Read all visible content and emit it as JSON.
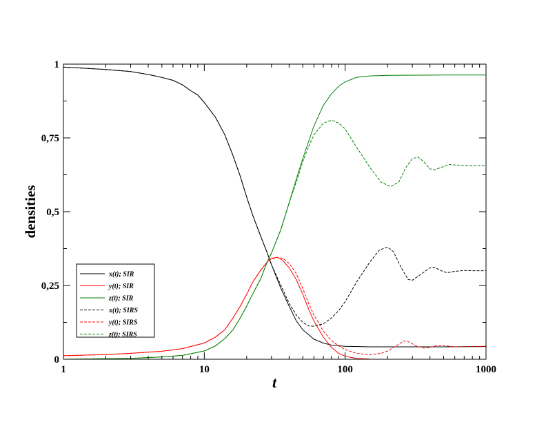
{
  "chart_data": {
    "type": "line",
    "title": "",
    "xlabel": "t",
    "ylabel": "densities",
    "xscale": "log",
    "xlim": [
      1,
      1000
    ],
    "ylim": [
      0,
      1
    ],
    "x_ticks": [
      "1",
      "10",
      "100",
      "1000"
    ],
    "y_ticks": [
      "0",
      "0,25",
      "0,5",
      "0,75",
      "1"
    ],
    "grid": false,
    "legend_position": "bottom-left",
    "series": [
      {
        "name": "x(t); SIR",
        "color": "#000000",
        "dash": "solid",
        "points": [
          [
            1,
            0.99
          ],
          [
            2,
            0.982
          ],
          [
            3,
            0.975
          ],
          [
            4,
            0.965
          ],
          [
            5,
            0.955
          ],
          [
            6,
            0.945
          ],
          [
            7,
            0.93
          ],
          [
            8,
            0.91
          ],
          [
            9,
            0.895
          ],
          [
            10,
            0.87
          ],
          [
            12,
            0.82
          ],
          [
            14,
            0.76
          ],
          [
            16,
            0.69
          ],
          [
            18,
            0.62
          ],
          [
            20,
            0.55
          ],
          [
            22,
            0.49
          ],
          [
            25,
            0.42
          ],
          [
            28,
            0.36
          ],
          [
            30,
            0.32
          ],
          [
            35,
            0.24
          ],
          [
            40,
            0.18
          ],
          [
            45,
            0.13
          ],
          [
            50,
            0.1
          ],
          [
            60,
            0.068
          ],
          [
            70,
            0.055
          ],
          [
            80,
            0.048
          ],
          [
            100,
            0.044
          ],
          [
            150,
            0.042
          ],
          [
            200,
            0.042
          ],
          [
            500,
            0.042
          ],
          [
            1000,
            0.043
          ]
        ]
      },
      {
        "name": "y(t); SIR",
        "color": "#ff0000",
        "dash": "solid",
        "points": [
          [
            1,
            0.012
          ],
          [
            2,
            0.016
          ],
          [
            3,
            0.02
          ],
          [
            5,
            0.027
          ],
          [
            7,
            0.036
          ],
          [
            10,
            0.055
          ],
          [
            12,
            0.075
          ],
          [
            14,
            0.1
          ],
          [
            16,
            0.14
          ],
          [
            18,
            0.18
          ],
          [
            20,
            0.22
          ],
          [
            22,
            0.26
          ],
          [
            25,
            0.3
          ],
          [
            28,
            0.33
          ],
          [
            30,
            0.342
          ],
          [
            33,
            0.345
          ],
          [
            36,
            0.335
          ],
          [
            40,
            0.31
          ],
          [
            45,
            0.27
          ],
          [
            50,
            0.22
          ],
          [
            55,
            0.17
          ],
          [
            60,
            0.13
          ],
          [
            70,
            0.075
          ],
          [
            80,
            0.04
          ],
          [
            90,
            0.02
          ],
          [
            100,
            0.01
          ],
          [
            120,
            0.003
          ],
          [
            150,
            0.001
          ]
        ]
      },
      {
        "name": "z(t); SIR",
        "color": "#008000",
        "dash": "solid",
        "points": [
          [
            1,
            0
          ],
          [
            3,
            0.003
          ],
          [
            5,
            0.008
          ],
          [
            7,
            0.013
          ],
          [
            10,
            0.028
          ],
          [
            12,
            0.045
          ],
          [
            14,
            0.07
          ],
          [
            16,
            0.1
          ],
          [
            18,
            0.14
          ],
          [
            20,
            0.18
          ],
          [
            22,
            0.22
          ],
          [
            25,
            0.27
          ],
          [
            28,
            0.33
          ],
          [
            30,
            0.36
          ],
          [
            35,
            0.44
          ],
          [
            40,
            0.53
          ],
          [
            45,
            0.61
          ],
          [
            50,
            0.68
          ],
          [
            60,
            0.79
          ],
          [
            70,
            0.86
          ],
          [
            80,
            0.9
          ],
          [
            90,
            0.925
          ],
          [
            100,
            0.94
          ],
          [
            120,
            0.955
          ],
          [
            150,
            0.96
          ],
          [
            200,
            0.962
          ],
          [
            500,
            0.963
          ],
          [
            1000,
            0.963
          ]
        ]
      },
      {
        "name": "x(t); SIRS",
        "color": "#000000",
        "dash": "dashed",
        "points": [
          [
            1,
            0.99
          ],
          [
            2,
            0.982
          ],
          [
            3,
            0.975
          ],
          [
            4,
            0.965
          ],
          [
            5,
            0.955
          ],
          [
            6,
            0.945
          ],
          [
            7,
            0.93
          ],
          [
            8,
            0.91
          ],
          [
            9,
            0.895
          ],
          [
            10,
            0.87
          ],
          [
            12,
            0.82
          ],
          [
            14,
            0.76
          ],
          [
            16,
            0.69
          ],
          [
            18,
            0.62
          ],
          [
            20,
            0.55
          ],
          [
            22,
            0.49
          ],
          [
            25,
            0.42
          ],
          [
            28,
            0.36
          ],
          [
            30,
            0.32
          ],
          [
            35,
            0.25
          ],
          [
            40,
            0.19
          ],
          [
            45,
            0.15
          ],
          [
            50,
            0.125
          ],
          [
            55,
            0.113
          ],
          [
            60,
            0.112
          ],
          [
            70,
            0.12
          ],
          [
            80,
            0.14
          ],
          [
            90,
            0.165
          ],
          [
            100,
            0.195
          ],
          [
            120,
            0.26
          ],
          [
            150,
            0.33
          ],
          [
            175,
            0.37
          ],
          [
            200,
            0.38
          ],
          [
            220,
            0.365
          ],
          [
            250,
            0.31
          ],
          [
            280,
            0.27
          ],
          [
            300,
            0.268
          ],
          [
            350,
            0.29
          ],
          [
            400,
            0.31
          ],
          [
            430,
            0.312
          ],
          [
            480,
            0.3
          ],
          [
            530,
            0.293
          ],
          [
            600,
            0.298
          ],
          [
            700,
            0.301
          ],
          [
            800,
            0.3
          ],
          [
            1000,
            0.3
          ]
        ]
      },
      {
        "name": "y(t); SIRS",
        "color": "#ff0000",
        "dash": "dashed",
        "points": [
          [
            1,
            0.012
          ],
          [
            2,
            0.016
          ],
          [
            3,
            0.02
          ],
          [
            5,
            0.027
          ],
          [
            7,
            0.036
          ],
          [
            10,
            0.055
          ],
          [
            12,
            0.075
          ],
          [
            14,
            0.1
          ],
          [
            16,
            0.14
          ],
          [
            18,
            0.18
          ],
          [
            20,
            0.22
          ],
          [
            22,
            0.26
          ],
          [
            25,
            0.3
          ],
          [
            28,
            0.33
          ],
          [
            30,
            0.34
          ],
          [
            33,
            0.345
          ],
          [
            36,
            0.342
          ],
          [
            40,
            0.325
          ],
          [
            45,
            0.29
          ],
          [
            50,
            0.24
          ],
          [
            55,
            0.19
          ],
          [
            60,
            0.15
          ],
          [
            70,
            0.095
          ],
          [
            80,
            0.063
          ],
          [
            90,
            0.045
          ],
          [
            100,
            0.033
          ],
          [
            120,
            0.02
          ],
          [
            150,
            0.015
          ],
          [
            180,
            0.02
          ],
          [
            200,
            0.028
          ],
          [
            230,
            0.045
          ],
          [
            260,
            0.062
          ],
          [
            280,
            0.06
          ],
          [
            320,
            0.045
          ],
          [
            360,
            0.038
          ],
          [
            400,
            0.04
          ],
          [
            450,
            0.047
          ],
          [
            500,
            0.046
          ],
          [
            600,
            0.042
          ],
          [
            700,
            0.043
          ],
          [
            1000,
            0.044
          ]
        ]
      },
      {
        "name": "z(t); SIRS",
        "color": "#008000",
        "dash": "dashed",
        "points": [
          [
            1,
            0
          ],
          [
            3,
            0.003
          ],
          [
            5,
            0.008
          ],
          [
            7,
            0.013
          ],
          [
            10,
            0.028
          ],
          [
            12,
            0.045
          ],
          [
            14,
            0.07
          ],
          [
            16,
            0.1
          ],
          [
            18,
            0.14
          ],
          [
            20,
            0.18
          ],
          [
            22,
            0.22
          ],
          [
            25,
            0.27
          ],
          [
            28,
            0.33
          ],
          [
            30,
            0.36
          ],
          [
            35,
            0.44
          ],
          [
            40,
            0.53
          ],
          [
            45,
            0.6
          ],
          [
            50,
            0.67
          ],
          [
            55,
            0.72
          ],
          [
            60,
            0.76
          ],
          [
            70,
            0.8
          ],
          [
            80,
            0.81
          ],
          [
            90,
            0.8
          ],
          [
            100,
            0.78
          ],
          [
            120,
            0.72
          ],
          [
            150,
            0.65
          ],
          [
            180,
            0.6
          ],
          [
            210,
            0.585
          ],
          [
            240,
            0.6
          ],
          [
            270,
            0.65
          ],
          [
            300,
            0.68
          ],
          [
            330,
            0.685
          ],
          [
            360,
            0.67
          ],
          [
            400,
            0.645
          ],
          [
            430,
            0.642
          ],
          [
            480,
            0.65
          ],
          [
            550,
            0.66
          ],
          [
            650,
            0.657
          ],
          [
            800,
            0.655
          ],
          [
            1000,
            0.656
          ]
        ]
      }
    ]
  }
}
